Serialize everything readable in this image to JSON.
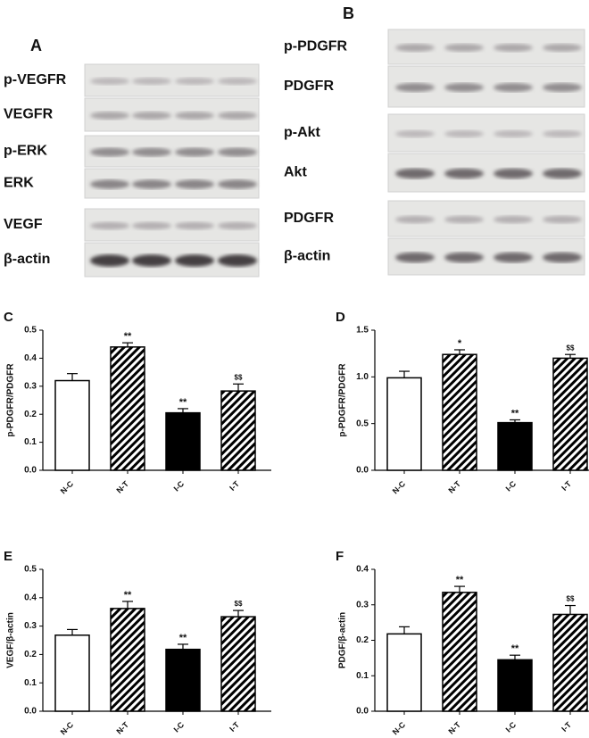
{
  "figure": {
    "panel_a": {
      "label": "A",
      "rows": [
        "p-VEGFR",
        "VEGFR",
        "p-ERK",
        "ERK",
        "VEGF",
        "β-actin"
      ]
    },
    "panel_b": {
      "label": "B",
      "rows": [
        "p-PDGFR",
        "PDGFR",
        "p-Akt",
        "Akt",
        "PDGFR",
        "β-actin"
      ]
    }
  },
  "chart_data": [
    {
      "type": "bar",
      "panel": "C",
      "ylabel": "p-PDGFR/PDGFR",
      "categories": [
        "N-C",
        "N-T",
        "I-C",
        "I-T"
      ],
      "values": [
        0.32,
        0.44,
        0.205,
        0.283
      ],
      "errors": [
        0.025,
        0.015,
        0.015,
        0.025
      ],
      "annotations": [
        null,
        "**",
        "**",
        "$$"
      ],
      "fills": [
        "#ffffff",
        "hatch",
        "#000000",
        "hatch"
      ],
      "ylim": [
        0,
        0.5
      ],
      "yticks": [
        {
          "value": 0,
          "label": "0.0"
        },
        0.1,
        0.2,
        0.3,
        0.4,
        0.5
      ]
    },
    {
      "type": "bar",
      "panel": "D",
      "ylabel": "p-PDGFR/PDGFR",
      "categories": [
        "N-C",
        "N-T",
        "I-C",
        "I-T"
      ],
      "values": [
        0.99,
        1.24,
        0.51,
        1.2
      ],
      "errors": [
        0.07,
        0.05,
        0.03,
        0.04
      ],
      "annotations": [
        null,
        "*",
        "**",
        "$$"
      ],
      "fills": [
        "#ffffff",
        "hatch",
        "#000000",
        "hatch"
      ],
      "ylim": [
        0,
        1.5
      ],
      "yticks": [
        {
          "value": 0,
          "label": "0.0"
        },
        0.5,
        {
          "value": 1,
          "label": "1.0"
        },
        1.5
      ]
    },
    {
      "type": "bar",
      "panel": "E",
      "ylabel": "VEGF/β-actin",
      "categories": [
        "N-C",
        "N-T",
        "I-C",
        "I-T"
      ],
      "values": [
        0.268,
        0.362,
        0.218,
        0.333
      ],
      "errors": [
        0.02,
        0.025,
        0.018,
        0.022
      ],
      "annotations": [
        null,
        "**",
        "**",
        "$$"
      ],
      "fills": [
        "#ffffff",
        "hatch",
        "#000000",
        "hatch"
      ],
      "ylim": [
        0,
        0.5
      ],
      "yticks": [
        {
          "value": 0,
          "label": "0.0"
        },
        0.1,
        0.2,
        0.3,
        0.4,
        0.5
      ]
    },
    {
      "type": "bar",
      "panel": "F",
      "ylabel": "PDGF/β-actin",
      "categories": [
        "N-C",
        "N-T",
        "I-C",
        "I-T"
      ],
      "values": [
        0.218,
        0.335,
        0.145,
        0.273
      ],
      "errors": [
        0.02,
        0.017,
        0.013,
        0.025
      ],
      "annotations": [
        null,
        "**",
        "**",
        "$$"
      ],
      "fills": [
        "#ffffff",
        "hatch",
        "#000000",
        "hatch"
      ],
      "ylim": [
        0,
        0.4
      ],
      "yticks": [
        {
          "value": 0,
          "label": "0.0"
        },
        0.1,
        0.2,
        0.3,
        0.4
      ]
    }
  ]
}
